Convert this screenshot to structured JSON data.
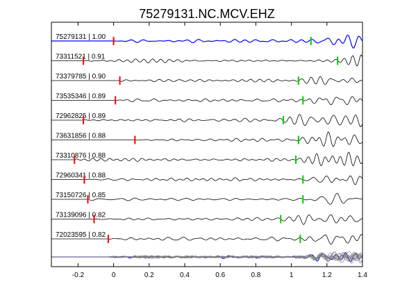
{
  "chart_data": {
    "type": "line",
    "title": "75279131.NC.MCV.EHZ",
    "xlabel": "",
    "ylabel": "",
    "xlim": [
      -0.35,
      1.4
    ],
    "x_ticks": [
      -0.2,
      0,
      0.2,
      0.4,
      0.6,
      0.8,
      1,
      1.2,
      1.4
    ],
    "x_tick_labels": [
      "-0.2",
      "0",
      "0.2",
      "0.4",
      "0.6",
      "0.8",
      "1",
      "1.2",
      "1.4"
    ],
    "grid": false,
    "colors": {
      "reference_trace": "#0000ff",
      "trace": "#000000",
      "stack_trace": "#808080",
      "p_pick": "#ff0000",
      "s_pick": "#00cc00"
    },
    "series": [
      {
        "label": "75279131 | 1.00",
        "p_pick": 0.0,
        "s_pick": 1.11,
        "reference": true
      },
      {
        "label": "73311521 | 0.91",
        "p_pick": -0.17,
        "s_pick": 1.26
      },
      {
        "label": "73379785 | 0.90",
        "p_pick": 0.035,
        "s_pick": 1.04
      },
      {
        "label": "73535346 | 0.89",
        "p_pick": 0.01,
        "s_pick": 1.065
      },
      {
        "label": "72962825 | 0.89",
        "p_pick": -0.17,
        "s_pick": 0.955
      },
      {
        "label": "73631856 | 0.88",
        "p_pick": 0.12,
        "s_pick": 1.04
      },
      {
        "label": "73310876 | 0.88",
        "p_pick": -0.22,
        "s_pick": 1.025
      },
      {
        "label": "72960341 | 0.88",
        "p_pick": -0.165,
        "s_pick": 1.065
      },
      {
        "label": "73150726 | 0.85",
        "p_pick": -0.145,
        "s_pick": 1.065
      },
      {
        "label": "73139096 | 0.82",
        "p_pick": -0.11,
        "s_pick": 0.94
      },
      {
        "label": "72023595 | 0.82",
        "p_pick": -0.03,
        "s_pick": 1.05
      }
    ]
  }
}
